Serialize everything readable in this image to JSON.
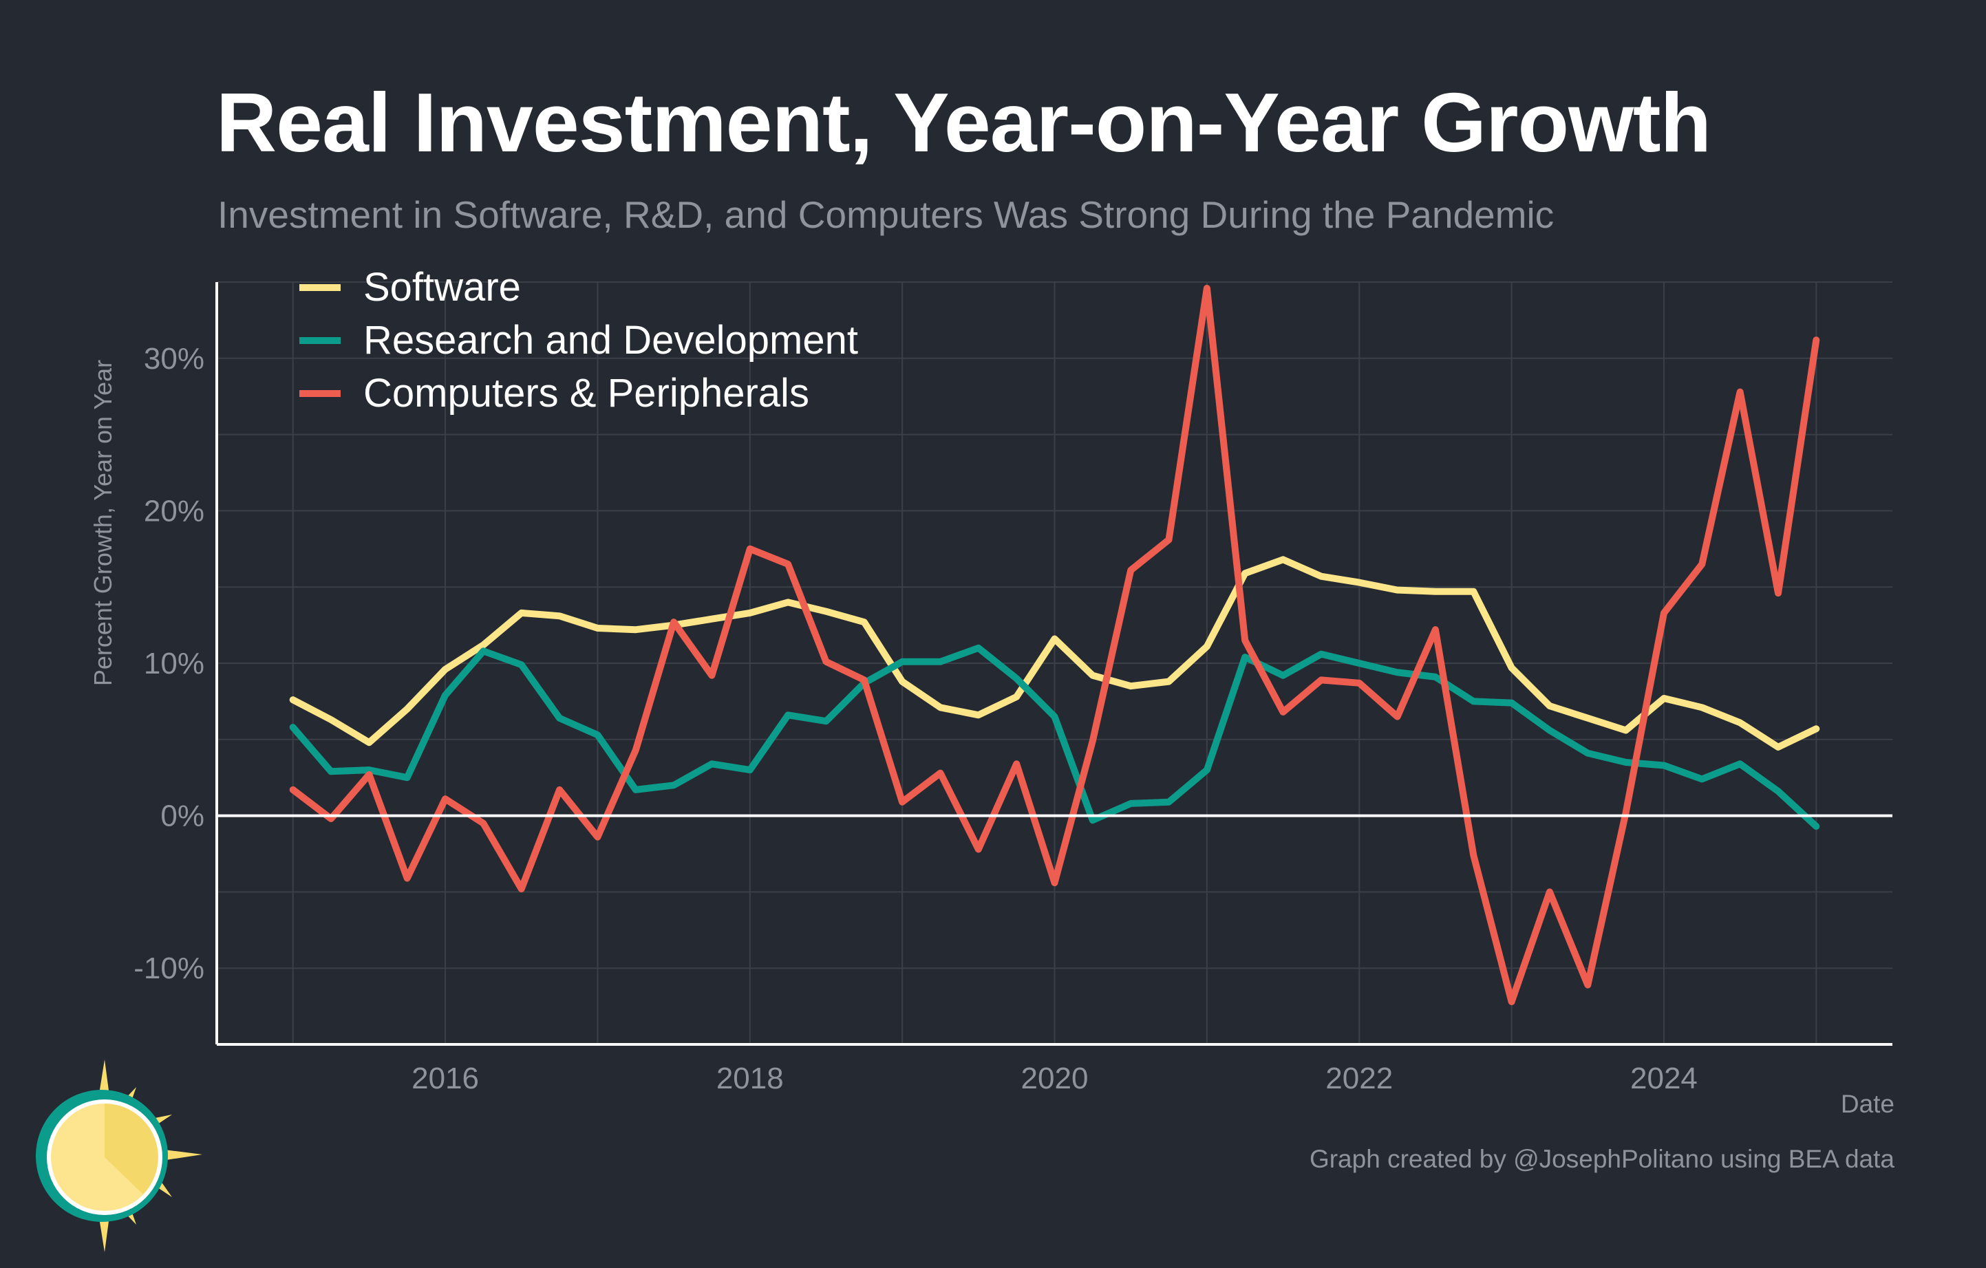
{
  "colors": {
    "background": "#252932",
    "text": "#ffffff",
    "muted": "#8f939b",
    "grid": "#3b3f48",
    "software": "#fde68a",
    "rd": "#0c9c8b",
    "computers": "#ee5e50"
  },
  "title": "Real Investment, Year-on-Year Growth",
  "subtitle": "Investment in Software, R&D, and Computers Was Strong During the Pandemic",
  "footer": {
    "xlabel": "Date",
    "credit": "Graph created by @JosephPolitano using BEA data"
  },
  "logo_icon": "sun-logo-icon",
  "chart_data": {
    "type": "line",
    "xlabel": "Date",
    "ylabel": "Percent Growth, Year on Year",
    "xlim": [
      2014.5,
      2025.5
    ],
    "ylim": [
      -15,
      35
    ],
    "x_ticks": [
      2016,
      2018,
      2020,
      2022,
      2024
    ],
    "x_tick_labels": [
      "2016",
      "2018",
      "2020",
      "2022",
      "2024"
    ],
    "y_ticks": [
      -10,
      0,
      10,
      20,
      30
    ],
    "y_tick_labels": [
      "-10%",
      "0%",
      "10%",
      "20%",
      "30%"
    ],
    "grid": true,
    "legend_position": "top-left",
    "x": [
      2015.0,
      2015.25,
      2015.5,
      2015.75,
      2016.0,
      2016.25,
      2016.5,
      2016.75,
      2017.0,
      2017.25,
      2017.5,
      2017.75,
      2018.0,
      2018.25,
      2018.5,
      2018.75,
      2019.0,
      2019.25,
      2019.5,
      2019.75,
      2020.0,
      2020.25,
      2020.5,
      2020.75,
      2021.0,
      2021.25,
      2021.5,
      2021.75,
      2022.0,
      2022.25,
      2022.5,
      2022.75,
      2023.0,
      2023.25,
      2023.5,
      2023.75,
      2024.0,
      2024.25,
      2024.5,
      2024.75,
      2025.0
    ],
    "series": [
      {
        "name": "Software",
        "color": "#fde68a",
        "values": [
          7.6,
          6.3,
          4.8,
          7.0,
          9.6,
          11.2,
          13.3,
          13.1,
          12.3,
          12.2,
          12.5,
          12.9,
          13.3,
          14.0,
          13.4,
          12.7,
          8.8,
          7.1,
          6.6,
          7.8,
          11.6,
          9.2,
          8.5,
          8.8,
          11.1,
          15.9,
          16.8,
          15.7,
          15.3,
          14.8,
          14.7,
          14.7,
          9.7,
          7.2,
          6.4,
          5.6,
          7.7,
          7.1,
          6.1,
          4.5,
          5.7
        ]
      },
      {
        "name": "Research and Development",
        "color": "#0c9c8b",
        "values": [
          5.8,
          2.9,
          3.0,
          2.5,
          7.9,
          10.8,
          9.9,
          6.4,
          5.3,
          1.7,
          2.0,
          3.4,
          3.0,
          6.6,
          6.2,
          8.7,
          10.1,
          10.1,
          11.0,
          9.0,
          6.5,
          -0.3,
          0.8,
          0.9,
          3.0,
          10.4,
          9.2,
          10.6,
          10.0,
          9.4,
          9.1,
          7.5,
          7.4,
          5.6,
          4.1,
          3.5,
          3.3,
          2.4,
          3.4,
          1.6,
          -0.7
        ]
      },
      {
        "name": "Computers & Peripherals",
        "color": "#ee5e50",
        "values": [
          1.7,
          -0.2,
          2.7,
          -4.1,
          1.1,
          -0.5,
          -4.8,
          1.7,
          -1.4,
          4.3,
          12.7,
          9.2,
          17.5,
          16.5,
          10.1,
          8.9,
          0.9,
          2.8,
          -2.2,
          3.4,
          -4.4,
          4.9,
          16.1,
          18.1,
          34.6,
          11.5,
          6.8,
          8.9,
          8.7,
          6.5,
          12.2,
          -2.6,
          -12.2,
          -5.0,
          -11.1,
          0.2,
          13.3,
          16.5,
          27.8,
          14.6,
          31.2
        ]
      }
    ]
  }
}
